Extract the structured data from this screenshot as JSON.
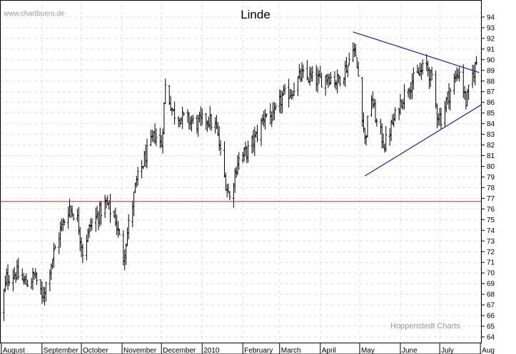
{
  "watermark": "www.chartbuero.de",
  "credit": "Hoppenstedt Charts",
  "chart_data": {
    "type": "bar",
    "subtype": "ohlc-daily-bars",
    "title": "Linde",
    "xlabel": "",
    "ylabel": "",
    "ylim": [
      63.4,
      95.6
    ],
    "yticks": [
      64,
      65,
      66,
      67,
      68,
      69,
      70,
      71,
      72,
      73,
      74,
      75,
      76,
      77,
      78,
      79,
      80,
      81,
      82,
      83,
      84,
      85,
      86,
      87,
      88,
      89,
      90,
      91,
      92,
      93,
      94
    ],
    "grid": true,
    "x_start_date": "2009-07-31",
    "x_end_date": "2010-08-02",
    "months": [
      {
        "label": "August",
        "date": "2009-08-01"
      },
      {
        "label": "September",
        "date": "2009-09-01"
      },
      {
        "label": "October",
        "date": "2009-10-01"
      },
      {
        "label": "November",
        "date": "2009-11-01"
      },
      {
        "label": "December",
        "date": "2009-12-01"
      },
      {
        "label": "2010",
        "date": "2010-01-01"
      },
      {
        "label": "February",
        "date": "2010-02-01"
      },
      {
        "label": "March",
        "date": "2010-03-01"
      },
      {
        "label": "April",
        "date": "2010-04-01"
      },
      {
        "label": "May",
        "date": "2010-05-01"
      },
      {
        "label": "June",
        "date": "2010-06-01"
      },
      {
        "label": "July",
        "date": "2010-07-01"
      },
      {
        "label": "Aug",
        "date": "2010-08-01"
      }
    ],
    "price_path": [
      [
        "2009-07-31",
        66.0
      ],
      [
        "2009-08-05",
        69.5
      ],
      [
        "2009-08-12",
        70.0
      ],
      [
        "2009-08-20",
        69.0
      ],
      [
        "2009-08-27",
        69.8
      ],
      [
        "2009-09-01",
        67.5
      ],
      [
        "2009-09-07",
        70.5
      ],
      [
        "2009-09-15",
        74.0
      ],
      [
        "2009-09-22",
        76.2
      ],
      [
        "2009-09-28",
        75.0
      ],
      [
        "2009-10-02",
        72.0
      ],
      [
        "2009-10-08",
        74.5
      ],
      [
        "2009-10-14",
        75.5
      ],
      [
        "2009-10-20",
        76.5
      ],
      [
        "2009-10-27",
        75.0
      ],
      [
        "2009-11-02",
        71.5
      ],
      [
        "2009-11-06",
        74.5
      ],
      [
        "2009-11-12",
        78.5
      ],
      [
        "2009-11-19",
        81.0
      ],
      [
        "2009-11-26",
        83.0
      ],
      [
        "2009-12-01",
        82.0
      ],
      [
        "2009-12-04",
        87.5
      ],
      [
        "2009-12-10",
        85.0
      ],
      [
        "2009-12-18",
        84.5
      ],
      [
        "2009-12-28",
        84.0
      ],
      [
        "2010-01-05",
        84.5
      ],
      [
        "2010-01-12",
        83.5
      ],
      [
        "2010-01-18",
        79.0
      ],
      [
        "2010-01-22",
        77.0
      ],
      [
        "2010-01-28",
        80.5
      ],
      [
        "2010-02-05",
        81.5
      ],
      [
        "2010-02-12",
        83.0
      ],
      [
        "2010-02-18",
        85.0
      ],
      [
        "2010-02-24",
        84.5
      ],
      [
        "2010-03-03",
        86.5
      ],
      [
        "2010-03-10",
        87.0
      ],
      [
        "2010-03-17",
        88.5
      ],
      [
        "2010-03-24",
        88.3
      ],
      [
        "2010-03-31",
        88.0
      ],
      [
        "2010-04-07",
        88.5
      ],
      [
        "2010-04-14",
        88.0
      ],
      [
        "2010-04-22",
        89.5
      ],
      [
        "2010-04-26",
        91.5
      ],
      [
        "2010-04-30",
        88.5
      ],
      [
        "2010-05-05",
        82.5
      ],
      [
        "2010-05-10",
        86.5
      ],
      [
        "2010-05-14",
        84.0
      ],
      [
        "2010-05-20",
        82.0
      ],
      [
        "2010-05-26",
        84.0
      ],
      [
        "2010-06-01",
        86.0
      ],
      [
        "2010-06-07",
        87.5
      ],
      [
        "2010-06-14",
        88.5
      ],
      [
        "2010-06-21",
        89.5
      ],
      [
        "2010-06-25",
        88.0
      ],
      [
        "2010-06-29",
        85.0
      ],
      [
        "2010-07-02",
        84.5
      ],
      [
        "2010-07-07",
        86.5
      ],
      [
        "2010-07-12",
        88.0
      ],
      [
        "2010-07-16",
        89.0
      ],
      [
        "2010-07-21",
        86.0
      ],
      [
        "2010-07-26",
        88.5
      ],
      [
        "2010-07-29",
        89.8
      ]
    ],
    "annotations": [
      {
        "type": "horizontal_line",
        "y": 76.7,
        "color": "#cc2020"
      },
      {
        "type": "trendline",
        "from": [
          "2010-04-26",
          92.6
        ],
        "to": [
          "2010-07-31",
          88.8
        ],
        "color": "#1a1ab8"
      },
      {
        "type": "trendline",
        "from": [
          "2010-05-05",
          79.1
        ],
        "to": [
          "2010-08-02",
          85.8
        ],
        "color": "#1a1ab8"
      }
    ]
  }
}
